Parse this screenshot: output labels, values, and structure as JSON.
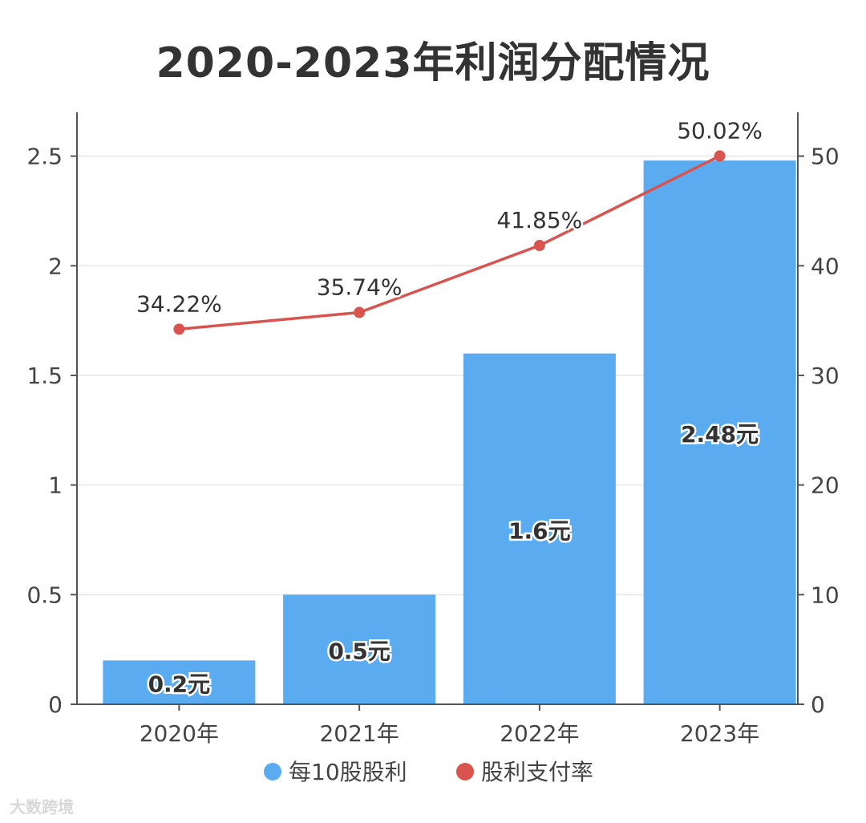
{
  "title": "2020-2023年利润分配情况",
  "watermark": "大数跨境",
  "colors": {
    "bar": "#5aabf0",
    "line": "#d9534f",
    "axis": "#555555",
    "grid": "#e6e6e6",
    "text": "#333333",
    "label": "#444444"
  },
  "chart_data": {
    "type": "bar",
    "title": "2020-2023年利润分配情况",
    "categories": [
      "2020年",
      "2021年",
      "2022年",
      "2023年"
    ],
    "series": [
      {
        "name": "每10股股利",
        "type": "bar",
        "axis": "left",
        "values": [
          0.2,
          0.5,
          1.6,
          2.48
        ],
        "labels": [
          "0.2元",
          "0.5元",
          "1.6元",
          "2.48元"
        ],
        "color": "#5aabf0"
      },
      {
        "name": "股利支付率",
        "type": "line",
        "axis": "right",
        "values": [
          34.22,
          35.74,
          41.85,
          50.02
        ],
        "labels": [
          "34.22%",
          "35.74%",
          "41.85%",
          "50.02%"
        ],
        "color": "#d9534f"
      }
    ],
    "y_left": {
      "ylim": [
        0,
        2.7
      ],
      "ticks": [
        0,
        0.5,
        1,
        1.5,
        2,
        2.5
      ],
      "tick_labels": [
        "0",
        "0.5",
        "1",
        "1.5",
        "2",
        "2.5"
      ]
    },
    "y_right": {
      "ylim": [
        0,
        54
      ],
      "ticks": [
        0,
        10,
        20,
        30,
        40,
        50
      ],
      "tick_labels": [
        "0",
        "10",
        "20",
        "30",
        "40",
        "50"
      ]
    },
    "grid": true,
    "legend": "bottom"
  }
}
